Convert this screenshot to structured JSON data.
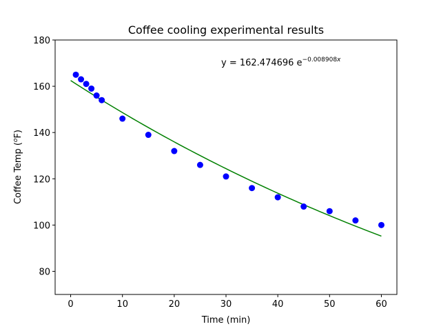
{
  "chart_data": {
    "type": "scatter",
    "title": "Coffee cooling experimental results",
    "xlabel": "Time (min)",
    "ylabel_base": "Coffee Temp (",
    "ylabel_sup": "o",
    "ylabel_end": "F)",
    "xlim": [
      -3,
      63
    ],
    "ylim": [
      70,
      180
    ],
    "xticks": [
      0,
      10,
      20,
      30,
      40,
      50,
      60
    ],
    "yticks": [
      80,
      100,
      120,
      140,
      160,
      180
    ],
    "grid": false,
    "series": [
      {
        "kind": "points",
        "color": "#0000ff",
        "x": [
          1,
          2,
          3,
          4,
          5,
          6,
          10,
          15,
          20,
          25,
          30,
          35,
          40,
          45,
          50,
          55,
          60
        ],
        "y": [
          165,
          163,
          161,
          159,
          156,
          154,
          146,
          139,
          132,
          126,
          121,
          116,
          112,
          108,
          106,
          102,
          100
        ]
      },
      {
        "kind": "fit",
        "color": "#008000",
        "a": 162.474696,
        "k": -0.008908,
        "x_range": [
          0,
          60
        ]
      }
    ],
    "annotation": {
      "prefix": "y = 162.474696 e",
      "exponent": "−0.008908",
      "exponent_var": "x"
    }
  }
}
